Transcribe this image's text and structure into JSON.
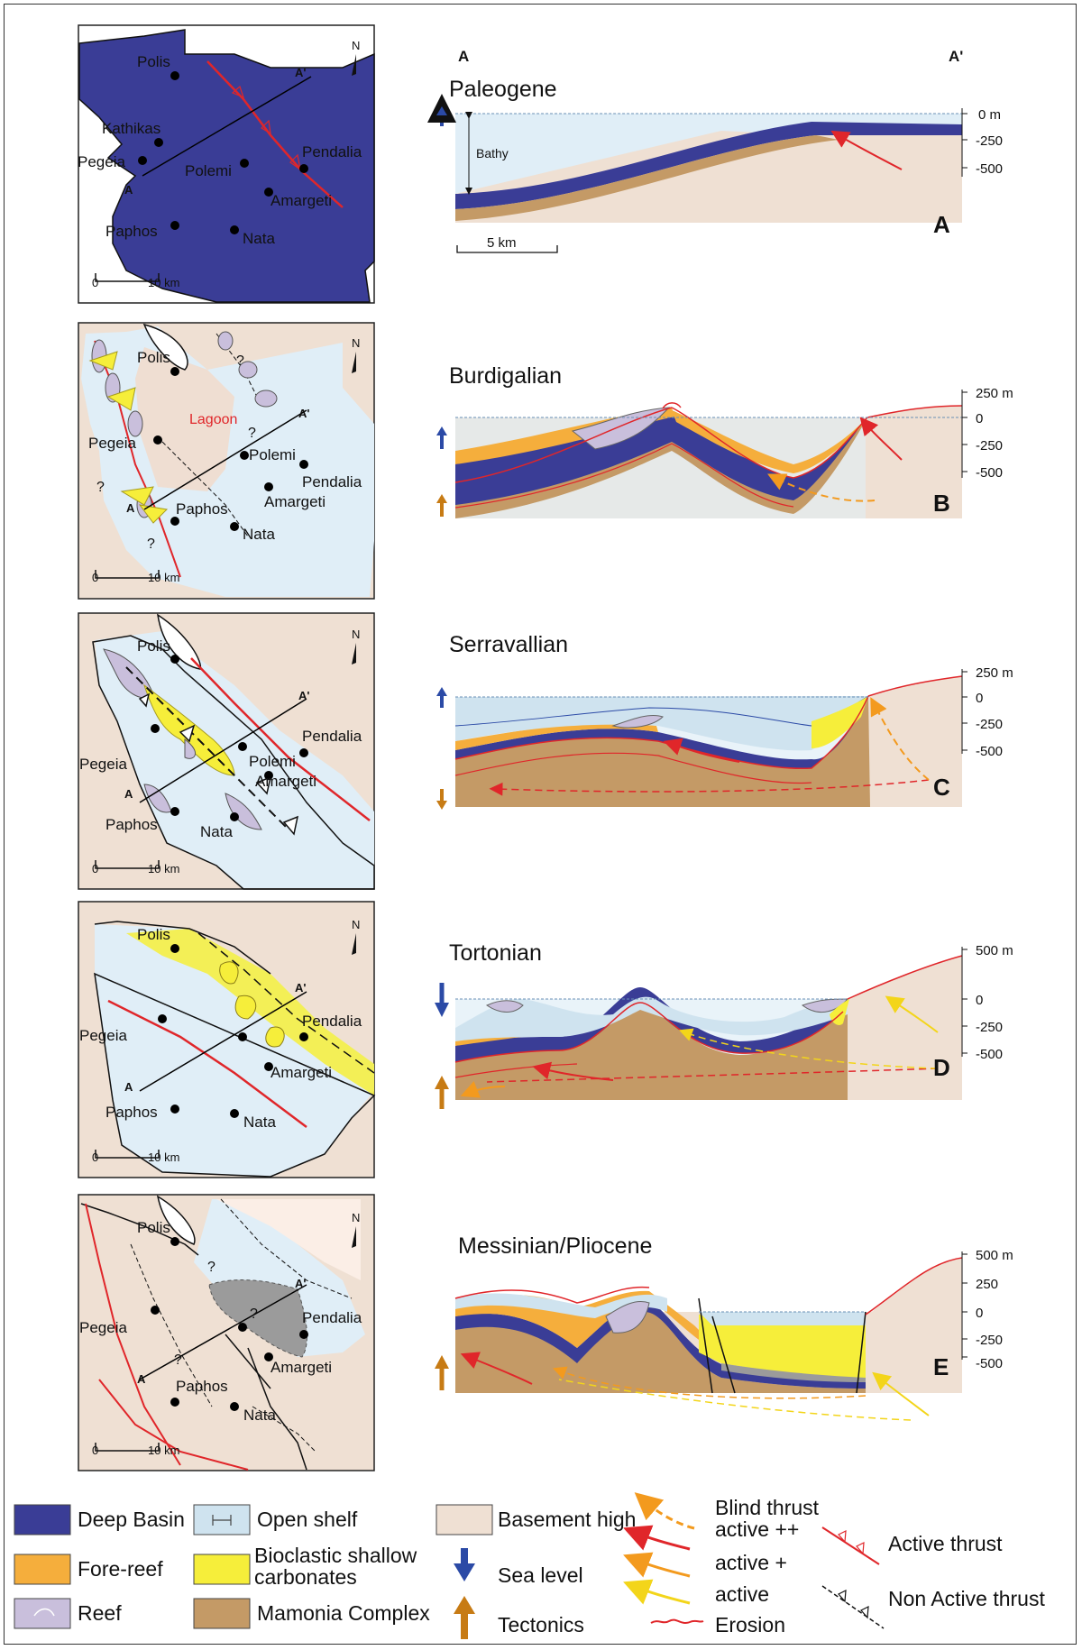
{
  "figure": {
    "colors": {
      "deep_basin": "#3a3d96",
      "open_shelf": "#cfe3ef",
      "fore_reef": "#f5ae3c",
      "bioclastic": "#f6ee3a",
      "reef": "#c9bfdc",
      "mamonia": "#c49a66",
      "basement": "#efe0d3",
      "sea_level_arrow": "#2b4aa6",
      "tectonics_arrow": "#c77b14",
      "thrust_red": "#e0262a"
    },
    "profile_end_labels": {
      "a": "A",
      "a_prime": "A'"
    },
    "panels": [
      {
        "letter": "A",
        "stage": "Paleogene",
        "depth_labels": [
          "0 m",
          "-250",
          "-500"
        ],
        "bathy_label": "Bathy",
        "km_scale_label": "5 km",
        "map_scale_label": "10 km",
        "map_north": "N",
        "towns": [
          "Polis",
          "Kathikas",
          "Pegeia",
          "Polemi",
          "Pendalia",
          "Amargeti",
          "Paphos",
          "Nata"
        ],
        "section_a": "A",
        "section_a_prime": "A'"
      },
      {
        "letter": "B",
        "stage": "Burdigalian",
        "depth_labels": [
          "250 m",
          "0",
          "-250",
          "-500"
        ],
        "map_scale_label": "10 km",
        "map_north": "N",
        "lagoon_label": "Lagoon",
        "question_mark": "?",
        "towns": [
          "Polis",
          "Pegeia",
          "Polemi",
          "Pendalia",
          "Amargeti",
          "Paphos",
          "Nata"
        ],
        "section_a": "A",
        "section_a_prime": "A'"
      },
      {
        "letter": "C",
        "stage": "Serravallian",
        "depth_labels": [
          "250 m",
          "0",
          "-250",
          "-500"
        ],
        "map_scale_label": "10 km",
        "map_north": "N",
        "towns": [
          "Polis",
          "Pegeia",
          "Polemi",
          "Pendalia",
          "Amargeti",
          "Paphos",
          "Nata"
        ],
        "section_a": "A",
        "section_a_prime": "A'"
      },
      {
        "letter": "D",
        "stage": "Tortonian",
        "depth_labels": [
          "500 m",
          "0",
          "-250",
          "-500"
        ],
        "map_scale_label": "10 km",
        "map_north": "N",
        "towns": [
          "Polis",
          "Pegeia",
          "Pendalia",
          "Amargeti",
          "Paphos",
          "Nata"
        ],
        "section_a": "A",
        "section_a_prime": "A'"
      },
      {
        "letter": "E",
        "stage": "Messinian/Pliocene",
        "depth_labels": [
          "500 m",
          "250",
          "0",
          "-250",
          "-500"
        ],
        "map_scale_label": "10 km",
        "map_north": "N",
        "question_mark": "?",
        "towns": [
          "Polis",
          "Pegeia",
          "Pendalia",
          "Amargeti",
          "Paphos",
          "Nata"
        ],
        "section_a": "A",
        "section_a_prime": "A'"
      }
    ],
    "legend": {
      "deep_basin": "Deep Basin",
      "open_shelf": "Open shelf",
      "basement_high": "Basement high",
      "fore_reef": "Fore-reef",
      "bioclastic_1": "Bioclastic shallow",
      "bioclastic_2": "carbonates",
      "sea_level": "Sea level",
      "reef": "Reef",
      "mamonia": "Mamonia Complex",
      "tectonics": "Tectonics",
      "blind_thrust_1": "Blind thrust",
      "blind_thrust_2": "active ++",
      "active_plus": "active +",
      "active": "active",
      "erosion": "Erosion",
      "active_thrust": "Active thrust",
      "non_active_thrust": "Non Active thrust"
    }
  }
}
